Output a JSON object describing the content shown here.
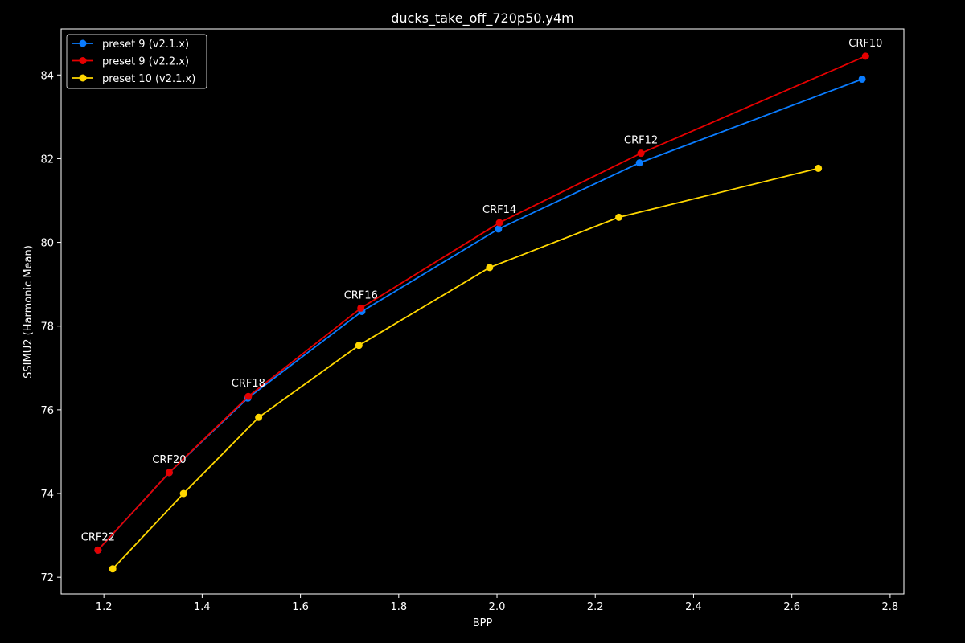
{
  "chart_data": {
    "type": "line",
    "title": "ducks_take_off_720p50.y4m",
    "xlabel": "BPP",
    "ylabel": "SSIMU2 (Harmonic Mean)",
    "xlim": [
      1.113,
      2.828
    ],
    "ylim": [
      71.6,
      85.1
    ],
    "xticks": [
      1.2,
      1.4,
      1.6,
      1.8,
      2.0,
      2.2,
      2.4,
      2.6,
      2.8
    ],
    "yticks": [
      72,
      74,
      76,
      78,
      80,
      82,
      84
    ],
    "grid": false,
    "legend_position": "upper left",
    "series": [
      {
        "name": "preset 9 (v2.1.x)",
        "color": "#0a7cff",
        "x": [
          1.188,
          1.333,
          1.493,
          1.725,
          2.003,
          2.29,
          2.743
        ],
        "y": [
          72.65,
          74.5,
          76.28,
          78.35,
          80.32,
          81.9,
          83.9
        ]
      },
      {
        "name": "preset 9 (v2.2.x)",
        "color": "#e60000",
        "x": [
          1.188,
          1.333,
          1.494,
          1.723,
          2.005,
          2.293,
          2.75
        ],
        "y": [
          72.65,
          74.5,
          76.32,
          78.43,
          80.47,
          82.13,
          84.45
        ]
      },
      {
        "name": "preset 10 (v2.1.x)",
        "color": "#ffd700",
        "x": [
          1.218,
          1.362,
          1.515,
          1.719,
          1.985,
          2.248,
          2.654
        ],
        "y": [
          72.2,
          74.0,
          75.82,
          77.54,
          79.4,
          80.6,
          81.77
        ]
      }
    ],
    "annotations": [
      {
        "text": "CRF22",
        "x": 1.188,
        "y": 72.65
      },
      {
        "text": "CRF20",
        "x": 1.333,
        "y": 74.5
      },
      {
        "text": "CRF18",
        "x": 1.494,
        "y": 76.32
      },
      {
        "text": "CRF16",
        "x": 1.723,
        "y": 78.43
      },
      {
        "text": "CRF14",
        "x": 2.005,
        "y": 80.47
      },
      {
        "text": "CRF12",
        "x": 2.293,
        "y": 82.13
      },
      {
        "text": "CRF10",
        "x": 2.75,
        "y": 84.45
      }
    ]
  }
}
